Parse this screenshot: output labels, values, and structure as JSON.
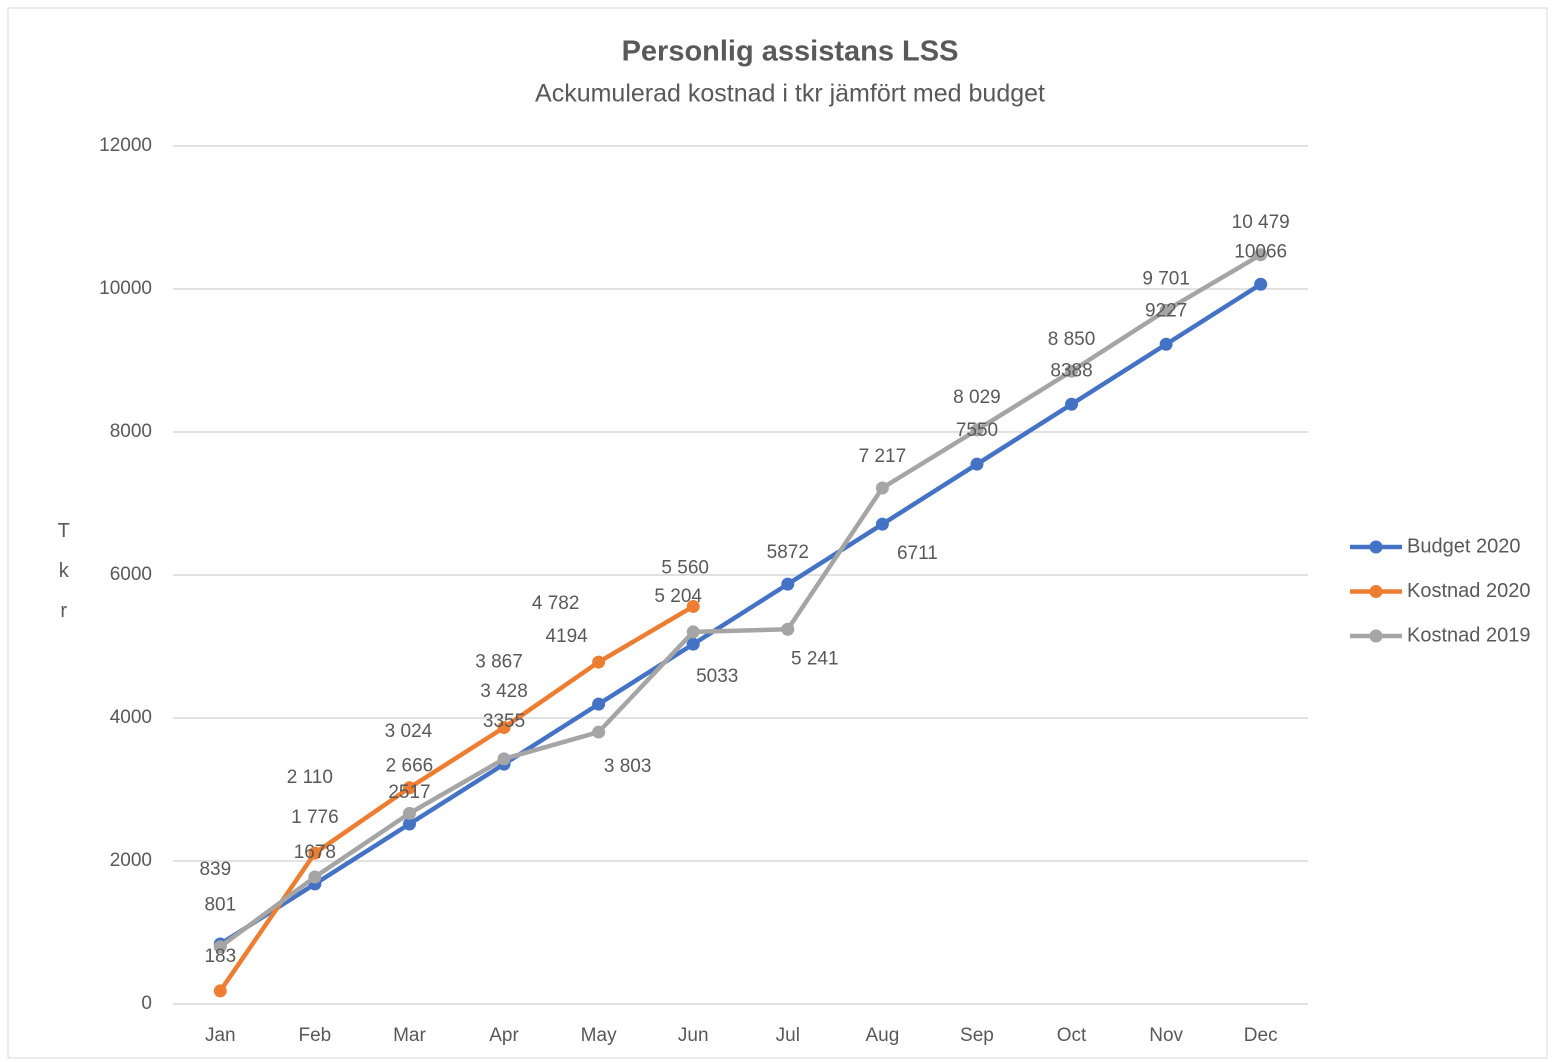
{
  "chart_data": {
    "type": "line",
    "title": "Personlig assistans LSS",
    "subtitle": "Ackumulerad kostnad i tkr jämfört med budget",
    "y_label": "Tkr",
    "categories": [
      "Jan",
      "Feb",
      "Mar",
      "Apr",
      "May",
      "Jun",
      "Jul",
      "Aug",
      "Sep",
      "Oct",
      "Nov",
      "Dec"
    ],
    "series": [
      {
        "name": "Budget 2020",
        "color": "#4472c4",
        "values": [
          839,
          1678,
          2517,
          3355,
          4194,
          5033,
          5872,
          6711,
          7550,
          8388,
          9227,
          10066
        ]
      },
      {
        "name": "Kostnad 2020",
        "color": "#ed7d31",
        "values": [
          183,
          2110,
          3024,
          3867,
          4782,
          5560,
          null,
          null,
          null,
          null,
          null,
          null
        ],
        "value_labels": [
          "183",
          "2 110",
          "3 024",
          "3 867",
          "4 782",
          "5 560",
          null,
          null,
          null,
          null,
          null,
          null
        ]
      },
      {
        "name": "Kostnad 2019",
        "color": "#a5a5a5",
        "values": [
          801,
          1776,
          2666,
          3428,
          3803,
          5204,
          5241,
          7217,
          8029,
          8850,
          9701,
          10479
        ],
        "value_labels": [
          "801",
          "1 776",
          "2 666",
          "3 428",
          "3 803",
          "5 204",
          "5 241",
          "7 217",
          "8 029",
          "8 850",
          "9 701",
          "10 479"
        ]
      }
    ],
    "ylim": [
      0,
      12000
    ],
    "yticks": [
      0,
      2000,
      4000,
      6000,
      8000,
      10000,
      12000
    ],
    "grid": true,
    "legend": "right"
  }
}
